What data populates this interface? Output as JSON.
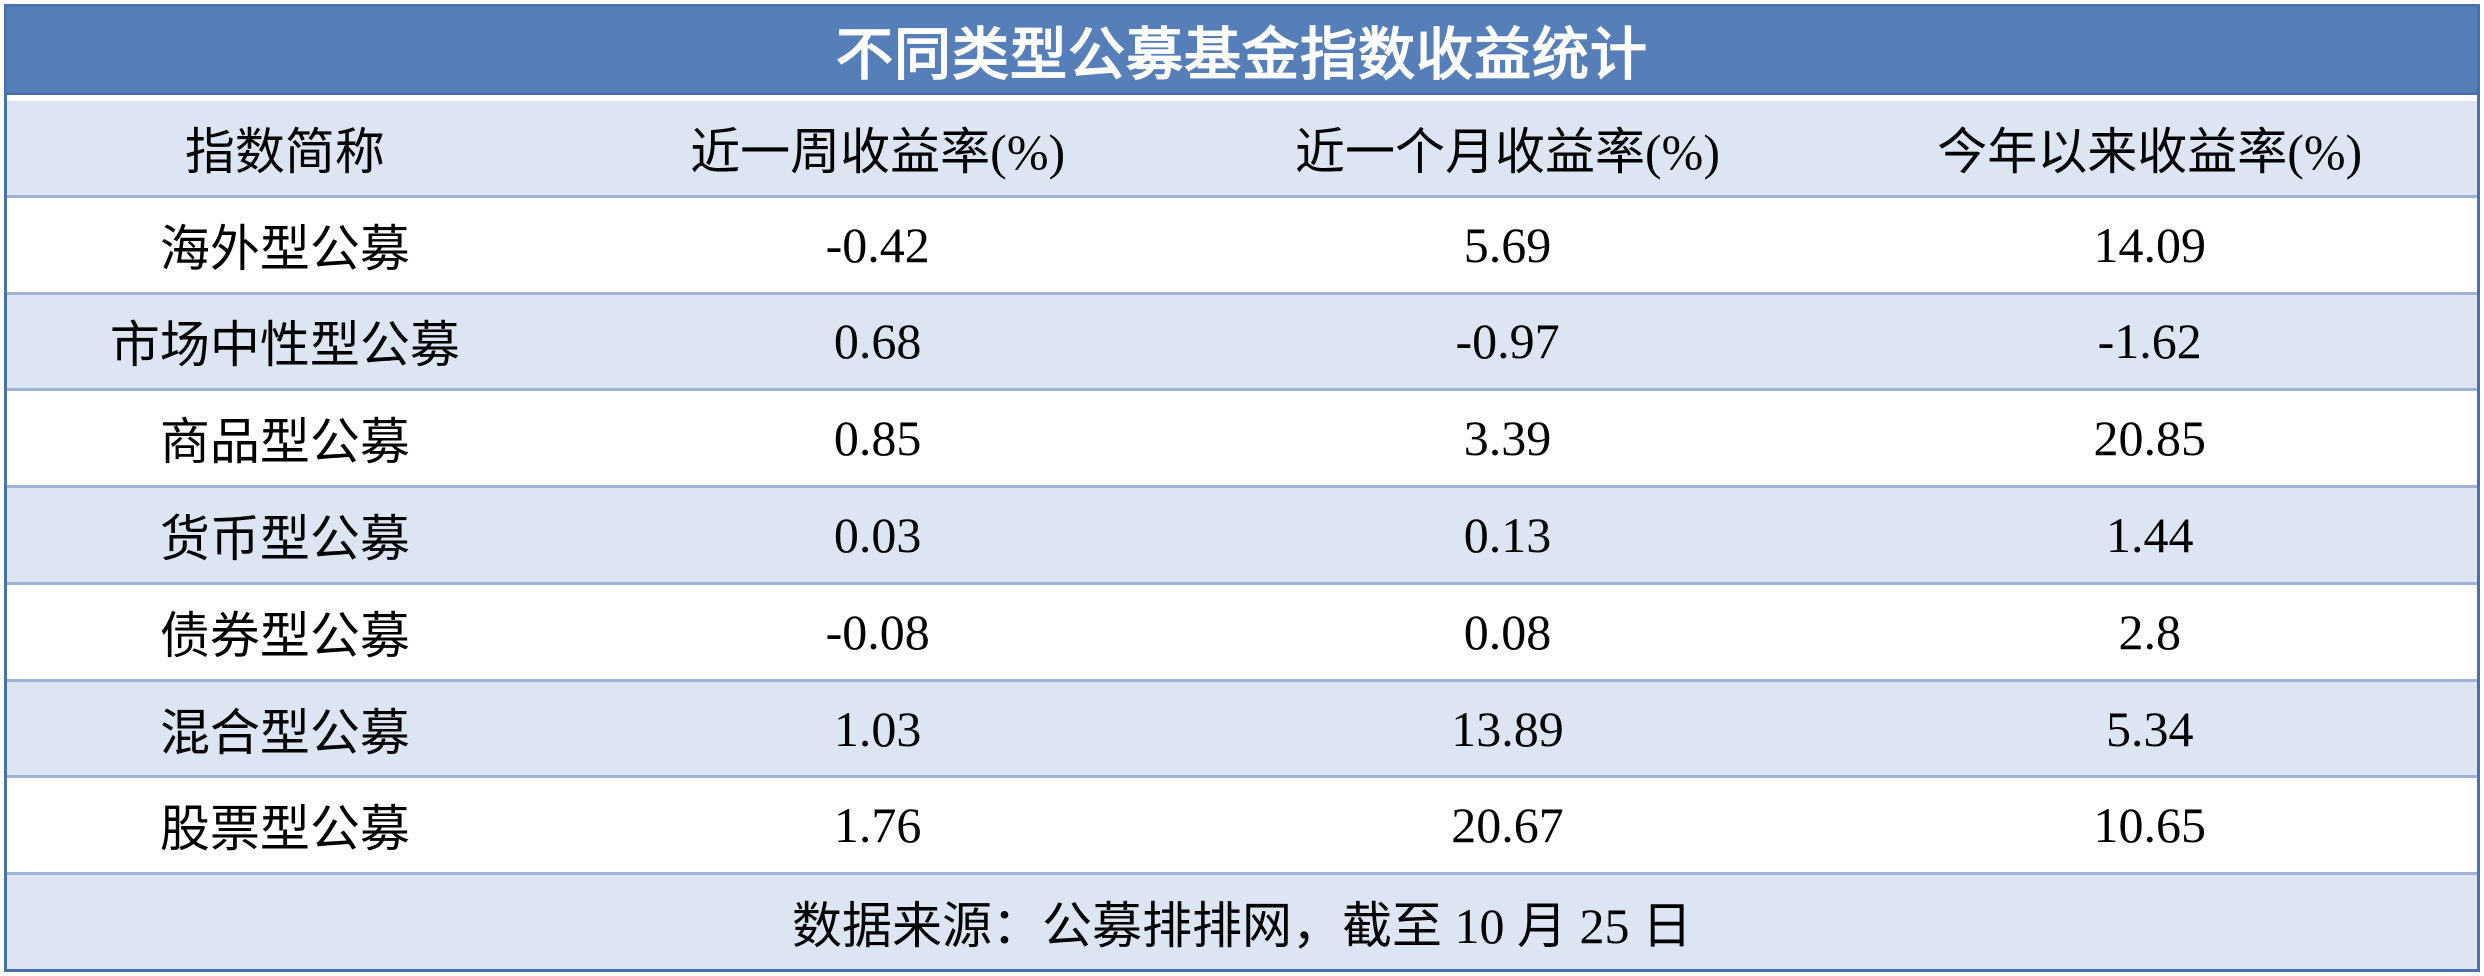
{
  "title": "不同类型公募基金指数收益统计",
  "colors": {
    "header_bg": "#567EB9",
    "alt_row_bg": "#DCE5F1",
    "row_line": "#9FB3D6",
    "outer_border": "#4A70AE",
    "title_text": "#FFFFFF",
    "body_text": "#000000"
  },
  "table": {
    "headers": [
      "指数简称",
      "近一周收益率(%)",
      "近一个月收益率(%)",
      "今年以来收益率(%)"
    ],
    "rows": [
      {
        "name": "海外型公募",
        "week": "-0.42",
        "month": "5.69",
        "ytd": "14.09"
      },
      {
        "name": "市场中性型公募",
        "week": "0.68",
        "month": "-0.97",
        "ytd": "-1.62"
      },
      {
        "name": "商品型公募",
        "week": "0.85",
        "month": "3.39",
        "ytd": "20.85"
      },
      {
        "name": "货币型公募",
        "week": "0.03",
        "month": "0.13",
        "ytd": "1.44"
      },
      {
        "name": "债券型公募",
        "week": "-0.08",
        "month": "0.08",
        "ytd": "2.8"
      },
      {
        "name": "混合型公募",
        "week": "1.03",
        "month": "13.89",
        "ytd": "5.34"
      },
      {
        "name": "股票型公募",
        "week": "1.76",
        "month": "20.67",
        "ytd": "10.65"
      }
    ]
  },
  "footer": {
    "source_note": "数据来源：公募排排网，截至 10 月 25 日"
  },
  "chart_data": {
    "type": "table",
    "title": "不同类型公募基金指数收益统计",
    "columns": [
      "指数简称",
      "近一周收益率(%)",
      "近一个月收益率(%)",
      "今年以来收益率(%)"
    ],
    "rows": [
      [
        "海外型公募",
        -0.42,
        5.69,
        14.09
      ],
      [
        "市场中性型公募",
        0.68,
        -0.97,
        -1.62
      ],
      [
        "商品型公募",
        0.85,
        3.39,
        20.85
      ],
      [
        "货币型公募",
        0.03,
        0.13,
        1.44
      ],
      [
        "债券型公募",
        -0.08,
        0.08,
        2.8
      ],
      [
        "混合型公募",
        1.03,
        13.89,
        5.34
      ],
      [
        "股票型公募",
        1.76,
        20.67,
        10.65
      ]
    ],
    "source_note": "数据来源：公募排排网，截至 10 月 25 日"
  }
}
